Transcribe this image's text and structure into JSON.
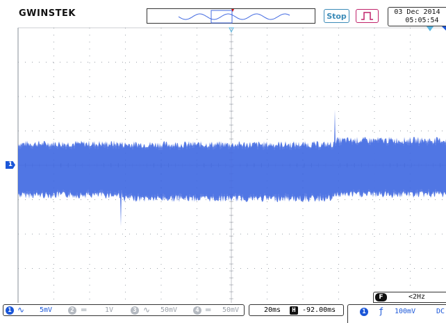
{
  "header": {
    "logo": "GWINSTEK",
    "run_state": "Stop",
    "date": "03 Dec 2014",
    "time": "05:05:54"
  },
  "display": {
    "channel_marker": "1",
    "trace_color": "#4169e1",
    "grid_color": "#9aa0a8"
  },
  "freq_counter": {
    "badge": "F",
    "value": "<2Hz"
  },
  "channels": [
    {
      "num": "1",
      "coupling_icon": "ac-coupling-icon",
      "scale": "5mV",
      "active": true,
      "color": "#1a56d8"
    },
    {
      "num": "2",
      "coupling_icon": "dc-coupling-icon",
      "scale": "1V",
      "active": false,
      "color": "#9aa0a8"
    },
    {
      "num": "3",
      "coupling_icon": "ac-coupling-icon",
      "scale": "50mV",
      "active": false,
      "color": "#9aa0a8"
    },
    {
      "num": "4",
      "coupling_icon": "dc-coupling-icon",
      "scale": "50mV",
      "active": false,
      "color": "#9aa0a8"
    }
  ],
  "timebase": {
    "scale": "20ms",
    "position": "-92.00ms"
  },
  "trigger": {
    "source": "1",
    "edge_symbol": "ƒ",
    "level": "100mV",
    "coupling": "DC"
  }
}
